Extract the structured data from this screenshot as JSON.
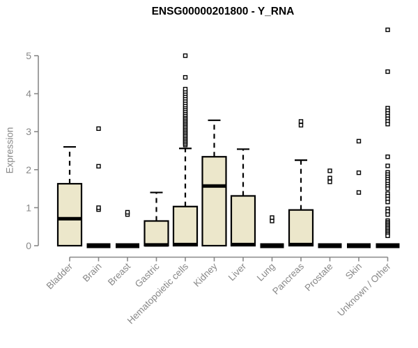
{
  "colors": {
    "box_fill": "#ECE7CB",
    "box_border": "#000000",
    "median": "#000000",
    "whisker": "#000000",
    "outlier_stroke": "#000000",
    "outlier_fill": "#FFFFFF",
    "axis": "#888888",
    "tick_text": "#888888",
    "title_text": "#000000",
    "background": "#FFFFFF"
  },
  "chart_data": {
    "type": "boxplot",
    "title": "ENSG00000201800 - Y_RNA",
    "xlabel": "",
    "ylabel": "Expression",
    "ylim": [
      0,
      5.8
    ],
    "yticks": [
      0,
      1,
      2,
      3,
      4,
      5
    ],
    "grid": "off",
    "legend": "none",
    "categories": [
      "Bladder",
      "Brain",
      "Breast",
      "Gastric",
      "Hematopoietic cells",
      "Kidney",
      "Liver",
      "Lung",
      "Pancreas",
      "Prostate",
      "Skin",
      "Unknown / Other"
    ],
    "series": [
      {
        "name": "Bladder",
        "whisker_low": 0,
        "q1": 0,
        "median": 0.71,
        "q3": 1.63,
        "whisker_high": 2.6,
        "outliers": []
      },
      {
        "name": "Brain",
        "whisker_low": 0,
        "q1": 0,
        "median": 0,
        "q3": 0,
        "whisker_high": 0,
        "outliers": [
          0.95,
          1.0,
          2.09,
          3.08
        ]
      },
      {
        "name": "Breast",
        "whisker_low": 0,
        "q1": 0,
        "median": 0,
        "q3": 0,
        "whisker_high": 0,
        "outliers": [
          0.82,
          0.88
        ]
      },
      {
        "name": "Gastric",
        "whisker_low": 0,
        "q1": 0,
        "median": 0.02,
        "q3": 0.65,
        "whisker_high": 1.4,
        "outliers": []
      },
      {
        "name": "Hematopoietic cells",
        "whisker_low": 0,
        "q1": 0,
        "median": 0.03,
        "q3": 1.03,
        "whisker_high": 2.56,
        "outliers": [
          2.65,
          2.69,
          2.73,
          2.77,
          2.81,
          2.85,
          2.89,
          2.93,
          2.97,
          3.01,
          3.05,
          3.09,
          3.13,
          3.17,
          3.21,
          3.25,
          3.29,
          3.33,
          3.37,
          3.41,
          3.45,
          3.5,
          3.55,
          3.6,
          3.65,
          3.7,
          3.76,
          3.82,
          3.88,
          3.94,
          4.0,
          4.06,
          4.12,
          4.43,
          5.0
        ]
      },
      {
        "name": "Kidney",
        "whisker_low": 0,
        "q1": 0,
        "median": 1.57,
        "q3": 2.34,
        "whisker_high": 3.3,
        "outliers": []
      },
      {
        "name": "Liver",
        "whisker_low": 0,
        "q1": 0,
        "median": 0.03,
        "q3": 1.31,
        "whisker_high": 2.54,
        "outliers": []
      },
      {
        "name": "Lung",
        "whisker_low": 0,
        "q1": 0,
        "median": 0,
        "q3": 0,
        "whisker_high": 0,
        "outliers": [
          0.65,
          0.74
        ]
      },
      {
        "name": "Pancreas",
        "whisker_low": 0,
        "q1": 0,
        "median": 0.03,
        "q3": 0.94,
        "whisker_high": 2.25,
        "outliers": [
          3.17,
          3.27
        ]
      },
      {
        "name": "Prostate",
        "whisker_low": 0,
        "q1": 0,
        "median": 0,
        "q3": 0,
        "whisker_high": 0,
        "outliers": [
          1.68,
          1.78,
          1.97
        ]
      },
      {
        "name": "Skin",
        "whisker_low": 0,
        "q1": 0,
        "median": 0,
        "q3": 0,
        "whisker_high": 0,
        "outliers": [
          1.4,
          1.92,
          2.75
        ]
      },
      {
        "name": "Unknown / Other",
        "whisker_low": 0,
        "q1": 0,
        "median": 0,
        "q3": 0,
        "whisker_high": 0,
        "outliers": [
          5.68,
          4.58,
          3.62,
          3.55,
          3.48,
          3.41,
          3.34,
          3.27,
          3.2,
          2.34,
          2.1,
          1.93,
          1.87,
          1.81,
          1.75,
          1.69,
          1.62,
          1.56,
          1.5,
          1.37,
          1.3,
          1.23,
          1.15,
          0.97,
          0.9,
          0.82,
          0.66,
          0.62,
          0.58,
          0.54,
          0.5,
          0.46,
          0.42,
          0.38,
          0.34,
          0.3,
          0.26
        ]
      }
    ]
  }
}
